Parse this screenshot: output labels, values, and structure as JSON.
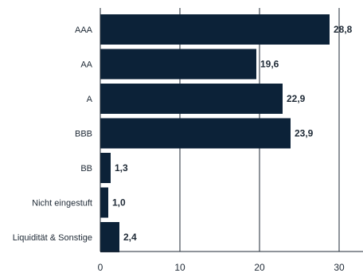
{
  "chart_data": {
    "type": "bar",
    "orientation": "horizontal",
    "categories": [
      "AAA",
      "AA",
      "A",
      "BBB",
      "BB",
      "Nicht eingestuft",
      "Liquidität & Sonstige"
    ],
    "values": [
      28.8,
      19.6,
      22.9,
      23.9,
      1.3,
      1.0,
      2.4
    ],
    "value_labels": [
      "28,8",
      "19,6",
      "22,9",
      "23,9",
      "1,3",
      "1,0",
      "2,4"
    ],
    "xlim": [
      0,
      33
    ],
    "xticks": [
      0,
      10,
      20,
      30
    ],
    "xtick_labels": [
      "0",
      "10",
      "20",
      "30"
    ],
    "grid": "vertical",
    "title": "",
    "xlabel": "",
    "ylabel": ""
  },
  "colors": {
    "bar": "#0c2238",
    "grid": "#1f2a36",
    "text": "#1f2a36"
  }
}
